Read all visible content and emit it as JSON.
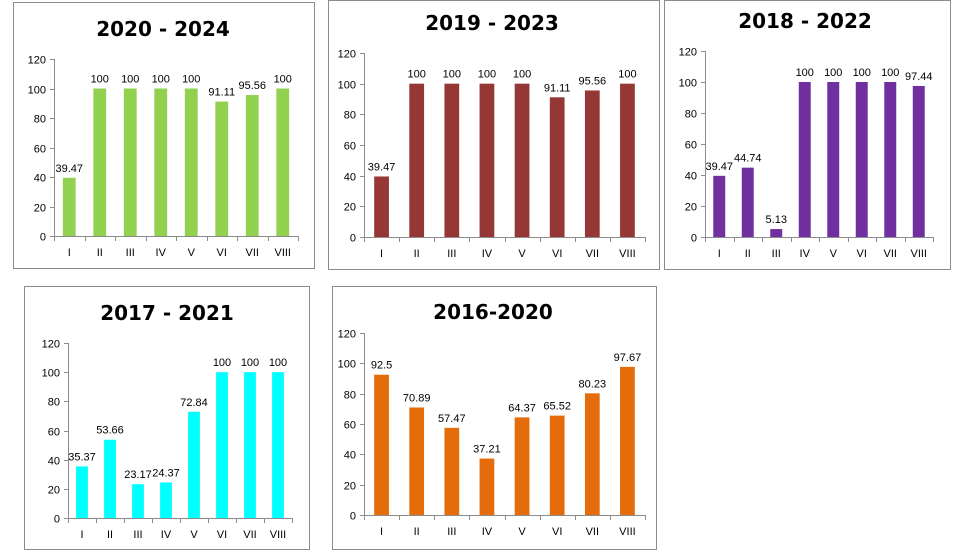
{
  "chart_data": [
    {
      "type": "bar",
      "title": "2020 - 2024",
      "categories": [
        "I",
        "II",
        "III",
        "IV",
        "V",
        "VI",
        "VII",
        "VIII"
      ],
      "values": [
        39.47,
        100,
        100,
        100,
        100,
        91.11,
        95.56,
        100
      ],
      "data_labels": [
        "39.47",
        "100",
        "100",
        "100",
        "100",
        "91.11",
        "95.56",
        "100"
      ],
      "ylim": [
        0,
        120
      ],
      "yticks": [
        0,
        20,
        40,
        60,
        80,
        100,
        120
      ],
      "grid": false,
      "bar_color": "#92d050"
    },
    {
      "type": "bar",
      "title": "2019 - 2023",
      "categories": [
        "I",
        "II",
        "III",
        "IV",
        "V",
        "VI",
        "VII",
        "VIII"
      ],
      "values": [
        39.47,
        100,
        100,
        100,
        100,
        91.11,
        95.56,
        100
      ],
      "data_labels": [
        "39.47",
        "100",
        "100",
        "100",
        "100",
        "91.11",
        "95.56",
        "100"
      ],
      "ylim": [
        0,
        120
      ],
      "yticks": [
        0,
        20,
        40,
        60,
        80,
        100,
        120
      ],
      "grid": false,
      "bar_color": "#953735"
    },
    {
      "type": "bar",
      "title": "2018 - 2022",
      "categories": [
        "I",
        "II",
        "III",
        "IV",
        "V",
        "VI",
        "VII",
        "VIII"
      ],
      "values": [
        39.47,
        44.74,
        5.13,
        100,
        100,
        100,
        100,
        97.44
      ],
      "data_labels": [
        "39.47",
        "44.74",
        "5.13",
        "100",
        "100",
        "100",
        "100",
        "97.44"
      ],
      "ylim": [
        0,
        120
      ],
      "yticks": [
        0,
        20,
        40,
        60,
        80,
        100,
        120
      ],
      "grid": false,
      "bar_color": "#7030a0"
    },
    {
      "type": "bar",
      "title": "2017 - 2021",
      "categories": [
        "I",
        "II",
        "III",
        "IV",
        "V",
        "VI",
        "VII",
        "VIII"
      ],
      "values": [
        35.37,
        53.66,
        23.17,
        24.37,
        72.84,
        100,
        100,
        100
      ],
      "data_labels": [
        "35.37",
        "53.66",
        "23.17",
        "24.37",
        "72.84",
        "100",
        "100",
        "100"
      ],
      "ylim": [
        0,
        120
      ],
      "yticks": [
        0,
        20,
        40,
        60,
        80,
        100,
        120
      ],
      "grid": false,
      "bar_color": "#00ffff"
    },
    {
      "type": "bar",
      "title": "2016-2020",
      "categories": [
        "I",
        "II",
        "III",
        "IV",
        "V",
        "VI",
        "VII",
        "VIII"
      ],
      "values": [
        92.5,
        70.89,
        57.47,
        37.21,
        64.37,
        65.52,
        80.23,
        97.67
      ],
      "data_labels": [
        "92.5",
        "70.89",
        "57.47",
        "37.21",
        "64.37",
        "65.52",
        "80.23",
        "97.67"
      ],
      "ylim": [
        0,
        120
      ],
      "yticks": [
        0,
        20,
        40,
        60,
        80,
        100,
        120
      ],
      "grid": false,
      "bar_color": "#e46c0a"
    }
  ]
}
